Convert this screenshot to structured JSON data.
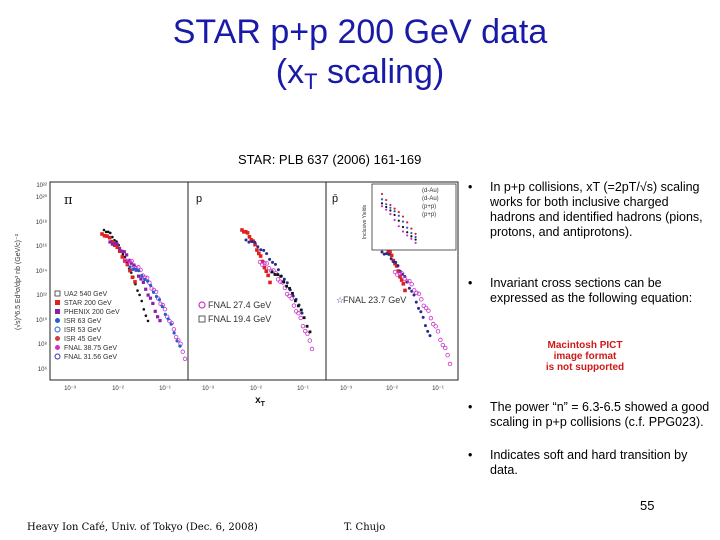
{
  "title": {
    "line1": "STAR p+p 200 GeV data",
    "line2_pre": "(x",
    "line2_sub": "T",
    "line2_post": " scaling)"
  },
  "reference": "STAR: PLB 637 (2006) 161-169",
  "figure": {
    "panel_labels": [
      "π",
      "p",
      "p̄"
    ],
    "y_tick_labels": [
      "10²²",
      "10²⁰",
      "10¹⁸",
      "10¹⁶",
      "10¹⁴",
      "10¹²",
      "10¹⁰",
      "10⁸",
      "10⁶"
    ],
    "x_tick_labels": [
      "10⁻³",
      "10⁻²",
      "10⁻¹"
    ],
    "x_axis_label": "x",
    "x_axis_label_sub": "T",
    "y_axis_label": "(√s)^6.5 Ed³σ/dp³ nb (GeV/c)⁻²",
    "legend_left": [
      "UA2 540 GeV",
      "STAR 200 GeV",
      "PHENIX 200 GeV",
      "ISR 63 GeV",
      "ISR 53 GeV",
      "ISR 45 GeV",
      "FNAL 38.75 GeV",
      "FNAL 31.56 GeV"
    ],
    "legend_mid": [
      "FNAL 27.4 GeV",
      "FNAL 19.4 GeV"
    ],
    "legend_right": [
      "FNAL 23.7 GeV"
    ],
    "inset_legend": [
      "(d-Au)",
      "(d-Au)",
      "(p+p)",
      "(p+p)"
    ],
    "inset_y_label": "Inclusive Yields",
    "colors": {
      "title": "#1a1aa8",
      "star": "#e02020",
      "phenix": "#8a20a0",
      "fnal": "#cc33cc",
      "black": "#111111",
      "pict": "#d01818"
    }
  },
  "bullets": [
    {
      "dot": "•",
      "text": "In p+p collisions, xT (=2pT/√s) scaling works for both inclusive charged hadrons and identified hadrons (pions, protons, and antiprotons)."
    },
    {
      "dot": "•",
      "text": "Invariant cross sections can be expressed as the following equation:"
    },
    {
      "dot": "•",
      "text": "The power “n” = 6.3-6.5 showed a good scaling in p+p collisions (c.f. PPG023)."
    },
    {
      "dot": "•",
      "text": "Indicates soft and hard transition by data."
    }
  ],
  "pict_placeholder": {
    "line1": "Macintosh PICT",
    "line2": "image format",
    "line3": "is not supported"
  },
  "page_number": "55",
  "footer_left": "Heavy Ion Café, Univ. of Tokyo (Dec. 6, 2008)",
  "footer_right": "T. Chujo"
}
